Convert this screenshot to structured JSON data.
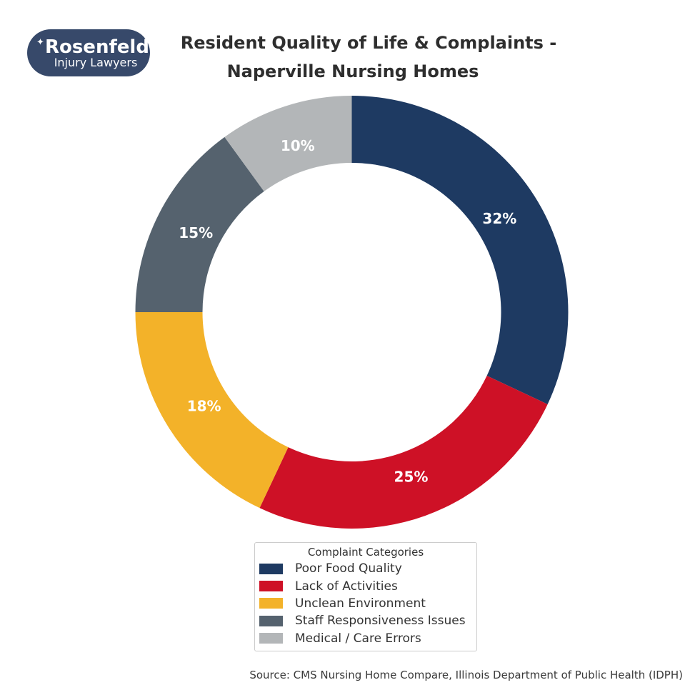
{
  "logo": {
    "name": "Rosenfeld",
    "tagline": "Injury Lawyers",
    "star_glyph": "✦",
    "bg_color": "#37496a"
  },
  "title": {
    "line1": "Resident Quality of Life & Complaints -",
    "line2": "Naperville Nursing Homes"
  },
  "chart_data": {
    "type": "pie",
    "subtype": "donut",
    "title": "Resident Quality of Life & Complaints - Naperville Nursing Homes",
    "categories": [
      "Poor Food Quality",
      "Lack of Activities",
      "Unclean Environment",
      "Staff Responsiveness Issues",
      "Medical / Care Errors"
    ],
    "values": [
      32,
      25,
      18,
      15,
      10
    ],
    "unit": "%",
    "slice_labels": [
      "32%",
      "25%",
      "18%",
      "15%",
      "10%"
    ],
    "colors": [
      "#1e3a62",
      "#ce1126",
      "#f3b229",
      "#55626e",
      "#b3b6b8"
    ],
    "start_angle_deg": 0,
    "direction": "clockwise",
    "legend_title": "Complaint Categories",
    "legend_position": "bottom-center",
    "label_color": "#ffffff"
  },
  "source_note": "Source: CMS Nursing Home Compare, Illinois Department of Public Health (IDPH)"
}
